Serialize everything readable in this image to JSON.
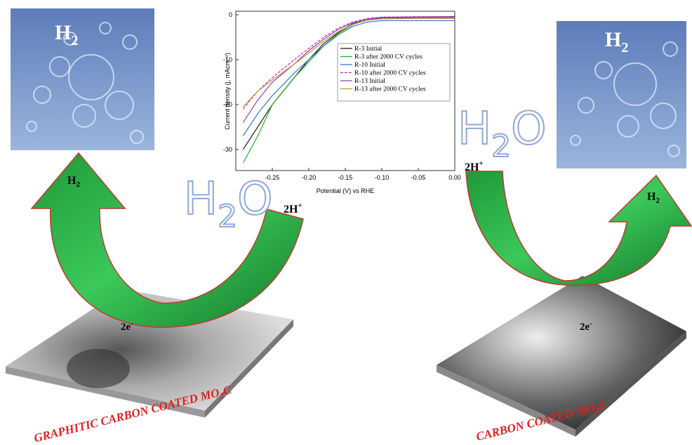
{
  "chart_data": {
    "type": "line",
    "x_label": "Potential (V) vs RHE",
    "y_label": "Current density (j, mAcm⁻²)",
    "x": [
      -0.29,
      -0.27,
      -0.25,
      -0.22,
      -0.2,
      -0.18,
      -0.16,
      -0.14,
      -0.12,
      -0.1,
      -0.05,
      0
    ],
    "series": [
      {
        "name": "R-3 Initial",
        "color": "#1a1a1a",
        "values": [
          -30,
          -25,
          -20,
          -14,
          -10,
          -6.5,
          -4,
          -2,
          -1,
          -0.6,
          -0.5,
          -0.4
        ]
      },
      {
        "name": "R-3 after 2000 CV cycles",
        "color": "#22b022",
        "values": [
          -33,
          -27,
          -20,
          -14,
          -10.5,
          -7,
          -4.2,
          -2.2,
          -1.1,
          -0.7,
          -0.6,
          -0.5
        ]
      },
      {
        "name": "R-10 Initial",
        "color": "#3a6fd0",
        "values": [
          -27,
          -22,
          -18,
          -13,
          -10,
          -7,
          -4.5,
          -2.6,
          -1.6,
          -1.3,
          -1.3,
          -1.3
        ]
      },
      {
        "name": "R-10 after 2000 CV cycles",
        "color": "#d020d0",
        "dash": true,
        "values": [
          -21,
          -17,
          -14,
          -10,
          -7.5,
          -5,
          -3,
          -1.6,
          -0.8,
          -0.5,
          -0.4,
          -0.4
        ]
      },
      {
        "name": "R-13 Initial",
        "color": "#9040c0",
        "values": [
          -24,
          -19,
          -15,
          -11,
          -8,
          -5.5,
          -3.3,
          -1.8,
          -1,
          -0.7,
          -0.6,
          -0.6
        ]
      },
      {
        "name": "R-13 after 2000 CV cycles",
        "color": "#b89a20",
        "values": [
          -20.5,
          -17,
          -14.5,
          -11,
          -8.5,
          -6,
          -3.8,
          -2.1,
          -1.2,
          -0.9,
          -0.8,
          -0.8
        ]
      }
    ],
    "xlim": [
      -0.3,
      0
    ],
    "ylim": [
      -34.7,
      0.8
    ],
    "xticks": [
      {
        "value": -0.25,
        "label": "-0.25"
      },
      {
        "value": -0.2,
        "label": "-0.20"
      },
      {
        "value": -0.15,
        "label": "-0.15"
      },
      {
        "value": -0.1,
        "label": "-0.10"
      },
      {
        "value": -0.05,
        "label": "-0.05"
      },
      {
        "value": 0,
        "label": "0.00"
      }
    ],
    "yticks": [
      0,
      -10,
      -20,
      -30
    ]
  },
  "labels": {
    "left_photo": {
      "main": "H",
      "sub": "2"
    },
    "right_photo": {
      "main": "H",
      "sub": "2"
    },
    "left_arrow": {
      "main": "H",
      "sub": "2"
    },
    "right_arrow": {
      "main": "H",
      "sub": "2"
    },
    "left_water": {
      "main": "H",
      "sub": "2",
      "tail": "O"
    },
    "right_water": {
      "main": "H",
      "sub": "2",
      "tail": "O"
    },
    "left_proton": {
      "main": "2H",
      "sup": "+"
    },
    "right_proton": {
      "main": "2H",
      "sup": "+"
    },
    "left_electron": {
      "main": "2e",
      "sup": "-"
    },
    "right_electron": {
      "main": "2e",
      "sup": "-"
    },
    "left_caption": {
      "a": "GRAPHITIC CARBON COATED MO",
      "sub": "2",
      "b": "C"
    },
    "right_caption": {
      "a": "CARBON COATED MO",
      "sub": "2",
      "b": "C"
    }
  }
}
